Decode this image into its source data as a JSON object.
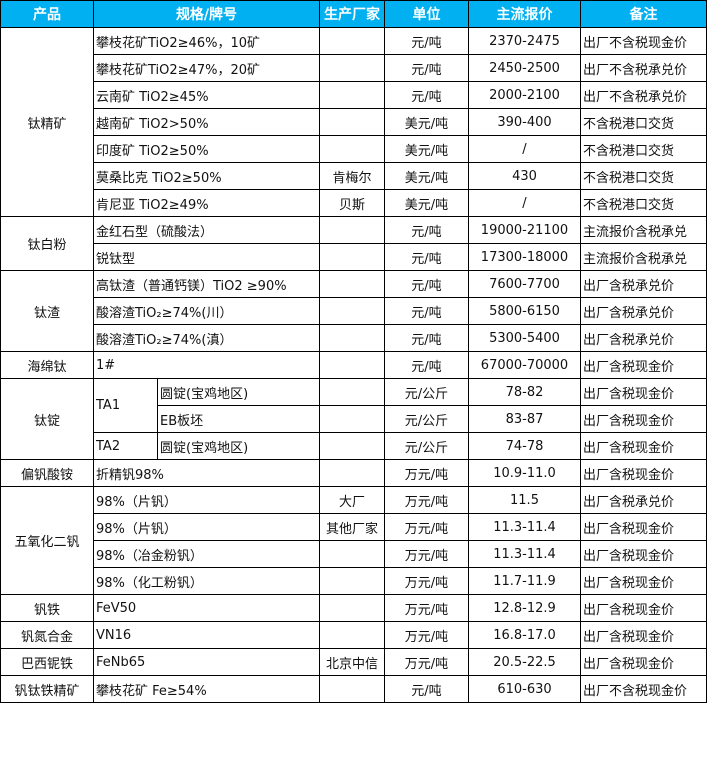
{
  "header": [
    "产品",
    "规格/牌号",
    "生产厂家",
    "单位",
    "主流报价",
    "备注"
  ],
  "colors": {
    "header_bg": "#00B0F0",
    "header_text": "#FFFFFF"
  },
  "groups": [
    {
      "product": "钛精矿",
      "rows": [
        {
          "spec": "攀枝花矿TiO2≥46%，10矿",
          "maker": "",
          "unit": "元/吨",
          "price": "2370-2475",
          "note": "出厂不含税现金价"
        },
        {
          "spec": "攀枝花矿TiO2≥47%，20矿",
          "maker": "",
          "unit": "元/吨",
          "price": "2450-2500",
          "note": "出厂不含税承兑价"
        },
        {
          "spec": "云南矿 TiO2≥45%",
          "maker": "",
          "unit": "元/吨",
          "price": "2000-2100",
          "note": "出厂不含税承兑价"
        },
        {
          "spec": "越南矿 TiO2>50%",
          "maker": "",
          "unit": "美元/吨",
          "price": "390-400",
          "note": "不含税港口交货"
        },
        {
          "spec": "印度矿 TiO2≥50%",
          "maker": "",
          "unit": "美元/吨",
          "price": "/",
          "note": "不含税港口交货"
        },
        {
          "spec": "莫桑比克 TiO2≥50%",
          "maker": "肯梅尔",
          "unit": "美元/吨",
          "price": "430",
          "note": "不含税港口交货"
        },
        {
          "spec": "肯尼亚 TiO2≥49%",
          "maker": "贝斯",
          "unit": "美元/吨",
          "price": "/",
          "note": "不含税港口交货"
        }
      ]
    },
    {
      "product": "钛白粉",
      "rows": [
        {
          "spec": "金红石型（硫酸法）",
          "maker": "",
          "unit": "元/吨",
          "price": "19000-21100",
          "note": "主流报价含税承兑"
        },
        {
          "spec": "锐钛型",
          "maker": "",
          "unit": "元/吨",
          "price": "17300-18000",
          "note": "主流报价含税承兑"
        }
      ]
    },
    {
      "product": "钛渣",
      "rows": [
        {
          "spec": "高钛渣（普通钙镁）TiO2 ≥90%",
          "maker": "",
          "unit": "元/吨",
          "price": "7600-7700",
          "note": "出厂含税承兑价"
        },
        {
          "spec": "酸溶渣TiO₂≥74%(川）",
          "maker": "",
          "unit": "元/吨",
          "price": "5800-6150",
          "note": "出厂含税承兑价"
        },
        {
          "spec": "酸溶渣TiO₂≥74%(滇）",
          "maker": "",
          "unit": "元/吨",
          "price": "5300-5400",
          "note": "出厂含税承兑价"
        }
      ]
    },
    {
      "product": "海绵钛",
      "rows": [
        {
          "spec": "1#",
          "maker": "",
          "unit": "元/吨",
          "price": "67000-70000",
          "note": "出厂含税现金价"
        }
      ]
    },
    {
      "product": "钛锭",
      "rows": [
        {
          "grade": "TA1",
          "spec": "圆锭(宝鸡地区)",
          "maker": "",
          "unit": "元/公斤",
          "price": "78-82",
          "note": "出厂含税现金价"
        },
        {
          "grade": "TA1",
          "spec": "EB板坯",
          "maker": "",
          "unit": "元/公斤",
          "price": "83-87",
          "note": "出厂含税现金价"
        },
        {
          "grade": "TA2",
          "spec": "圆锭(宝鸡地区)",
          "maker": "",
          "unit": "元/公斤",
          "price": "74-78",
          "note": "出厂含税现金价"
        }
      ]
    },
    {
      "product": "偏钒酸铵",
      "rows": [
        {
          "spec": "折精钒98%",
          "maker": "",
          "unit": "万元/吨",
          "price": "10.9-11.0",
          "note": "出厂含税现金价"
        }
      ]
    },
    {
      "product": "五氧化二钒",
      "rows": [
        {
          "spec": "98%（片钒）",
          "maker": "大厂",
          "unit": "万元/吨",
          "price": "11.5",
          "note": "出厂含税承兑价"
        },
        {
          "spec": "98%（片钒）",
          "maker": "其他厂家",
          "unit": "万元/吨",
          "price": "11.3-11.4",
          "note": "出厂含税现金价"
        },
        {
          "spec": "98%（冶金粉钒）",
          "maker": "",
          "unit": "万元/吨",
          "price": "11.3-11.4",
          "note": "出厂含税现金价"
        },
        {
          "spec": "98%（化工粉钒）",
          "maker": "",
          "unit": "万元/吨",
          "price": "11.7-11.9",
          "note": "出厂含税现金价"
        }
      ]
    },
    {
      "product": "钒铁",
      "rows": [
        {
          "spec": "FeV50",
          "maker": "",
          "unit": "万元/吨",
          "price": "12.8-12.9",
          "note": "出厂含税现金价"
        }
      ]
    },
    {
      "product": "钒氮合金",
      "rows": [
        {
          "spec": "VN16",
          "maker": "",
          "unit": "万元/吨",
          "price": "16.8-17.0",
          "note": "出厂含税现金价"
        }
      ]
    },
    {
      "product": "巴西铌铁",
      "rows": [
        {
          "spec": "FeNb65",
          "maker": "北京中信",
          "unit": "万元/吨",
          "price": "20.5-22.5",
          "note": "出厂含税现金价"
        }
      ]
    },
    {
      "product": "钒钛铁精矿",
      "rows": [
        {
          "spec": "攀枝花矿 Fe≥54%",
          "maker": "",
          "unit": "元/吨",
          "price": "610-630",
          "note": "出厂不含税现金价"
        }
      ]
    }
  ]
}
